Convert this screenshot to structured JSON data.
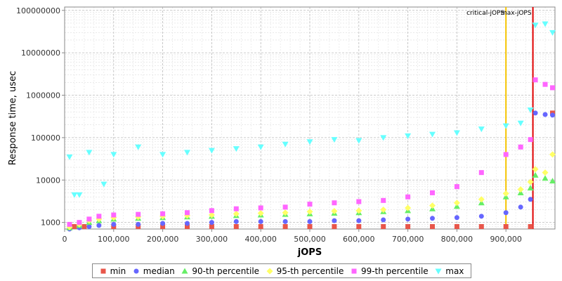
{
  "chart_data": {
    "type": "scatter",
    "title": "",
    "xlabel": "jOPS",
    "ylabel": "Response time, usec",
    "xlim": [
      0,
      1000000
    ],
    "ylim": [
      700,
      120000000
    ],
    "y_scale": "log",
    "x_ticks": [
      0,
      100000,
      200000,
      300000,
      400000,
      500000,
      600000,
      700000,
      800000,
      900000
    ],
    "x_tick_labels": [
      "0",
      "100,000",
      "200,000",
      "300,000",
      "400,000",
      "500,000",
      "600,000",
      "700,000",
      "800,000",
      "900,000"
    ],
    "y_ticks": [
      1000,
      10000,
      100000,
      1000000,
      10000000,
      100000000
    ],
    "y_tick_labels": [
      "1000",
      "10000",
      "100000",
      "1000000",
      "10000000",
      "100000000"
    ],
    "grid": true,
    "legend_position": "bottom",
    "vlines": [
      {
        "label": "critical-jOPS",
        "x": 900000,
        "color": "#f5c400"
      },
      {
        "label": "max-jOPS",
        "x": 955000,
        "color": "#e00000"
      }
    ],
    "series": [
      {
        "name": "min",
        "color": "#e8564a",
        "marker": "square",
        "x": [
          20000,
          40000,
          100000,
          150000,
          200000,
          250000,
          300000,
          350000,
          400000,
          450000,
          500000,
          550000,
          600000,
          650000,
          700000,
          750000,
          800000,
          850000,
          900000,
          950000,
          995000
        ],
        "y": [
          800,
          800,
          800,
          800,
          800,
          800,
          800,
          800,
          800,
          800,
          800,
          800,
          800,
          800,
          800,
          800,
          800,
          800,
          800,
          800,
          380000
        ]
      },
      {
        "name": "median",
        "color": "#6666ff",
        "marker": "circle",
        "x": [
          10000,
          30000,
          50000,
          70000,
          100000,
          150000,
          200000,
          250000,
          300000,
          350000,
          400000,
          450000,
          500000,
          550000,
          600000,
          650000,
          700000,
          750000,
          800000,
          850000,
          900000,
          930000,
          950000,
          960000,
          980000,
          995000
        ],
        "y": [
          700,
          750,
          800,
          850,
          900,
          900,
          950,
          950,
          1000,
          1050,
          1050,
          1050,
          1050,
          1100,
          1100,
          1150,
          1200,
          1250,
          1300,
          1400,
          1700,
          2300,
          3500,
          380000,
          350000,
          340000
        ]
      },
      {
        "name": "90-th percentile",
        "color": "#66ee66",
        "marker": "triangle-up",
        "x": [
          10000,
          30000,
          50000,
          70000,
          100000,
          150000,
          200000,
          250000,
          300000,
          350000,
          400000,
          450000,
          500000,
          550000,
          600000,
          650000,
          700000,
          750000,
          800000,
          850000,
          900000,
          930000,
          950000,
          960000,
          980000,
          995000
        ],
        "y": [
          750,
          850,
          1000,
          1100,
          1200,
          1250,
          1300,
          1350,
          1400,
          1450,
          1500,
          1550,
          1600,
          1650,
          1700,
          1800,
          1900,
          2100,
          2400,
          2900,
          4000,
          5000,
          6500,
          13000,
          11000,
          9500
        ]
      },
      {
        "name": "95-th percentile",
        "color": "#ffff66",
        "marker": "diamond",
        "x": [
          10000,
          30000,
          50000,
          70000,
          100000,
          150000,
          200000,
          250000,
          300000,
          350000,
          400000,
          450000,
          500000,
          550000,
          600000,
          650000,
          700000,
          750000,
          800000,
          850000,
          900000,
          930000,
          950000,
          960000,
          980000,
          995000
        ],
        "y": [
          780,
          900,
          1100,
          1200,
          1300,
          1350,
          1400,
          1450,
          1500,
          1600,
          1650,
          1700,
          1800,
          1850,
          1900,
          2000,
          2200,
          2500,
          2900,
          3500,
          4800,
          6000,
          9000,
          18000,
          15000,
          40000
        ]
      },
      {
        "name": "99-th percentile",
        "color": "#ff66ff",
        "marker": "square",
        "x": [
          10000,
          30000,
          50000,
          70000,
          100000,
          150000,
          200000,
          250000,
          300000,
          350000,
          400000,
          450000,
          500000,
          550000,
          600000,
          650000,
          700000,
          750000,
          800000,
          850000,
          900000,
          930000,
          950000,
          960000,
          980000,
          995000
        ],
        "y": [
          900,
          1000,
          1200,
          1400,
          1500,
          1550,
          1600,
          1700,
          1900,
          2100,
          2200,
          2300,
          2700,
          2900,
          3100,
          3300,
          4000,
          5000,
          7000,
          15000,
          40000,
          60000,
          90000,
          2300000,
          1800000,
          1500000
        ]
      },
      {
        "name": "max",
        "color": "#66ffff",
        "marker": "triangle-down",
        "x": [
          10000,
          20000,
          30000,
          50000,
          80000,
          100000,
          150000,
          200000,
          250000,
          300000,
          350000,
          400000,
          450000,
          500000,
          550000,
          600000,
          650000,
          700000,
          750000,
          800000,
          850000,
          900000,
          930000,
          950000,
          960000,
          980000,
          995000
        ],
        "y": [
          35000,
          4500,
          4500,
          45000,
          8000,
          40000,
          60000,
          40000,
          45000,
          50000,
          55000,
          60000,
          70000,
          80000,
          90000,
          85000,
          100000,
          110000,
          120000,
          130000,
          160000,
          190000,
          220000,
          450000,
          45000000,
          48000000,
          30000000
        ]
      }
    ]
  }
}
